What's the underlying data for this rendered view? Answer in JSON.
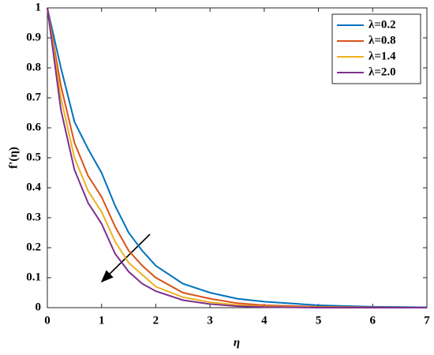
{
  "chart_data": {
    "type": "line",
    "xlabel": "η",
    "ylabel": "f'(η)",
    "x": [
      0,
      0.25,
      0.5,
      0.75,
      1,
      1.25,
      1.5,
      1.75,
      2,
      2.5,
      3,
      3.5,
      4,
      5,
      6,
      7
    ],
    "series": [
      {
        "name": "λ=0.2",
        "color": "#0072bd",
        "values": [
          1,
          0.8,
          0.62,
          0.53,
          0.45,
          0.34,
          0.25,
          0.19,
          0.14,
          0.08,
          0.05,
          0.03,
          0.02,
          0.008,
          0.003,
          0.001
        ]
      },
      {
        "name": "λ=0.8",
        "color": "#d95319",
        "values": [
          1,
          0.74,
          0.55,
          0.44,
          0.37,
          0.27,
          0.19,
          0.14,
          0.1,
          0.05,
          0.03,
          0.015,
          0.008,
          0.003,
          0.001,
          0
        ]
      },
      {
        "name": "λ=1.4",
        "color": "#edb120",
        "values": [
          1,
          0.7,
          0.5,
          0.39,
          0.32,
          0.22,
          0.15,
          0.11,
          0.07,
          0.035,
          0.018,
          0.009,
          0.004,
          0.001,
          0,
          0
        ]
      },
      {
        "name": "λ=2.0",
        "color": "#7e2f8e",
        "values": [
          1,
          0.66,
          0.46,
          0.35,
          0.28,
          0.18,
          0.12,
          0.08,
          0.055,
          0.025,
          0.012,
          0.005,
          0.002,
          0,
          0,
          0
        ]
      }
    ],
    "xlim": [
      0,
      7
    ],
    "xticks": [
      0,
      1,
      2,
      3,
      4,
      5,
      6,
      7
    ],
    "ylim": [
      0,
      1
    ],
    "yticks": [
      0,
      0.1,
      0.2,
      0.3,
      0.4,
      0.5,
      0.6,
      0.7,
      0.8,
      0.9,
      1
    ],
    "legend": "upper right"
  }
}
